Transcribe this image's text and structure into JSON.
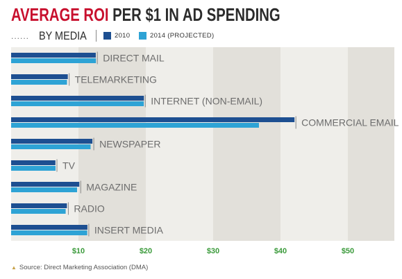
{
  "header": {
    "title_part1": "AVERAGE ROI",
    "title_part2": "PER $1 IN AD SPENDING",
    "subtitle": "BY MEDIA",
    "dots": "......"
  },
  "legend": [
    {
      "label": "2010",
      "color": "#1d4f91"
    },
    {
      "label": "2014 (PROJECTED)",
      "color": "#2ea3d5"
    }
  ],
  "source": {
    "text": "Source: Direct Marketing Association (DMA)",
    "icon": "triangle-icon"
  },
  "colors": {
    "series_2010": "#1d4f91",
    "series_2014": "#2ea3d5",
    "band_light": "#efeeea",
    "band_dark": "#e2e0da",
    "tick_green": "#3a9a3a",
    "label_gray": "#6d6d6d"
  },
  "chart_data": {
    "type": "bar",
    "orientation": "horizontal",
    "title": "AVERAGE ROI PER $1 IN AD SPENDING",
    "subtitle": "BY MEDIA",
    "categories": [
      "DIRECT MAIL",
      "TELEMARKETING",
      "INTERNET (NON-EMAIL)",
      "COMMERCIAL EMAIL",
      "NEWSPAPER",
      "TV",
      "MAGAZINE",
      "RADIO",
      "INSERT MEDIA"
    ],
    "series": [
      {
        "name": "2010",
        "values": [
          12.57,
          8.42,
          19.72,
          42.08,
          12.07,
          6.58,
          10.13,
          8.29,
          11.33
        ]
      },
      {
        "name": "2014 (PROJECTED)",
        "values": [
          12.6,
          8.3,
          19.7,
          36.8,
          11.8,
          6.6,
          9.8,
          8.1,
          11.3
        ]
      }
    ],
    "xlim": [
      0,
      57
    ],
    "xticks": [
      10,
      20,
      30,
      40,
      50
    ],
    "xtick_labels": [
      "$10",
      "$20",
      "$30",
      "$40",
      "$50"
    ],
    "xlabel": "",
    "ylabel": "",
    "grid": "alternating vertical bands",
    "legend_position": "top"
  }
}
